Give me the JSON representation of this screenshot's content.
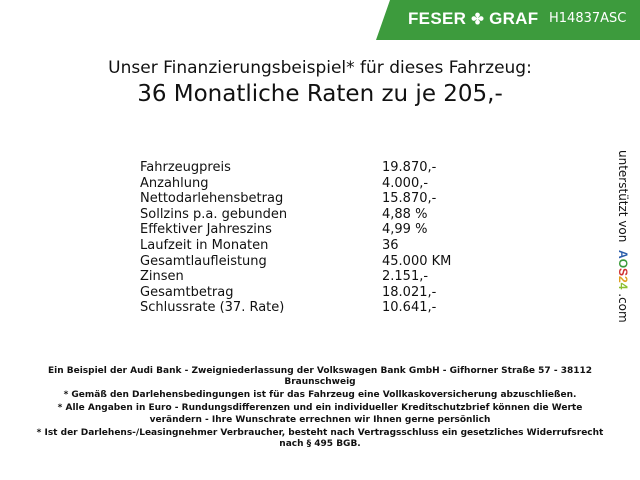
{
  "header": {
    "brand": "FESER",
    "brand2": "GRAF",
    "code": "H14837ASC",
    "color": "#3d9b3d",
    "logo_icon": "clover-icon"
  },
  "title": {
    "line1": "Unser Finanzierungsbeispiel* für dieses Fahrzeug:",
    "line2": "36 Monatliche Raten zu je 205,-"
  },
  "table": [
    {
      "label": "Fahrzeugpreis",
      "value": "19.870,-"
    },
    {
      "label": "Anzahlung",
      "value": "4.000,-"
    },
    {
      "label": "Nettodarlehensbetrag",
      "value": "15.870,-"
    },
    {
      "label": "Sollzins p.a. gebunden",
      "value": "4,88 %"
    },
    {
      "label": "Effektiver Jahreszins",
      "value": "4,99 %"
    },
    {
      "label": "Laufzeit in Monaten",
      "value": "36"
    },
    {
      "label": "Gesamtlaufleistung",
      "value": "45.000 KM"
    },
    {
      "label": "Zinsen",
      "value": "2.151,-"
    },
    {
      "label": "Gesamtbetrag",
      "value": "18.021,-"
    },
    {
      "label": "Schlussrate (37. Rate)",
      "value": "10.641,-"
    }
  ],
  "side": {
    "text": "unterstützt von",
    "logo": "AOS24",
    "suffix": ".com"
  },
  "footnotes": [
    "Ein Beispiel der Audi Bank - Zweigniederlassung der Volkswagen Bank GmbH - Gifhorner Straße 57 - 38112 Braunschweig",
    "* Gemäß den Darlehensbedingungen ist für das Fahrzeug eine Vollkaskoversicherung abzuschließen.",
    "* Alle Angaben in Euro - Rundungsdifferenzen und ein individueller Kreditschutzbrief können die Werte verändern - Ihre Wunschrate errechnen wir Ihnen gerne persönlich",
    "* Ist der Darlehens-/Leasingnehmer Verbraucher, besteht nach Vertragsschluss ein gesetzliches Widerrufsrecht nach § 495 BGB."
  ]
}
